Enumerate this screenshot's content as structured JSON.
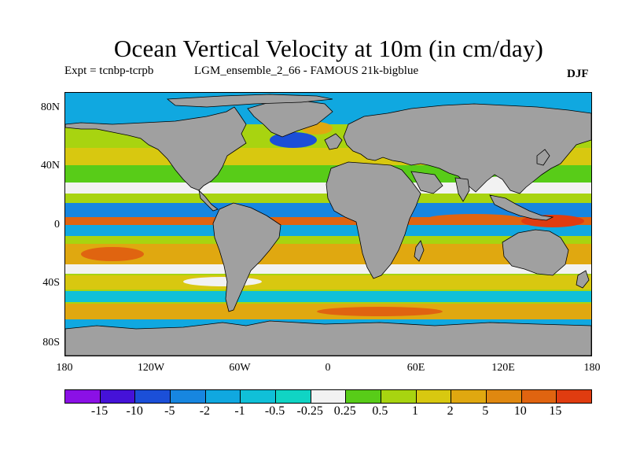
{
  "figure": {
    "title": "Ocean Vertical Velocity at 10m (in cm/day)",
    "expt_label": "Expt = tcnbp-tcrpb",
    "run_label": "LGM_ensemble_2_66 - FAMOUS 21k-bigblue",
    "season": "DJF"
  },
  "map": {
    "lat_ticks": [
      "80N",
      "40N",
      "0",
      "40S",
      "80S"
    ],
    "lon_ticks": [
      "180",
      "120W",
      "60W",
      "0",
      "60E",
      "120E",
      "180"
    ],
    "land_color": "#a0a0a0",
    "ocean_background": "#ffffff"
  },
  "colorbar": {
    "colors": [
      "#8b10e6",
      "#4512d8",
      "#1b4fd8",
      "#1786e0",
      "#10a8e0",
      "#10c0d8",
      "#10d4c4",
      "#f2f2f2",
      "#58cc18",
      "#a8d410",
      "#d8c810",
      "#e0a810",
      "#e08810",
      "#e06410",
      "#e03c10"
    ],
    "labels": [
      "-15",
      "-10",
      "-5",
      "-2",
      "-1",
      "-0.5",
      "-0.25",
      "0.25",
      "0.5",
      "1",
      "2",
      "5",
      "10",
      "15"
    ]
  }
}
